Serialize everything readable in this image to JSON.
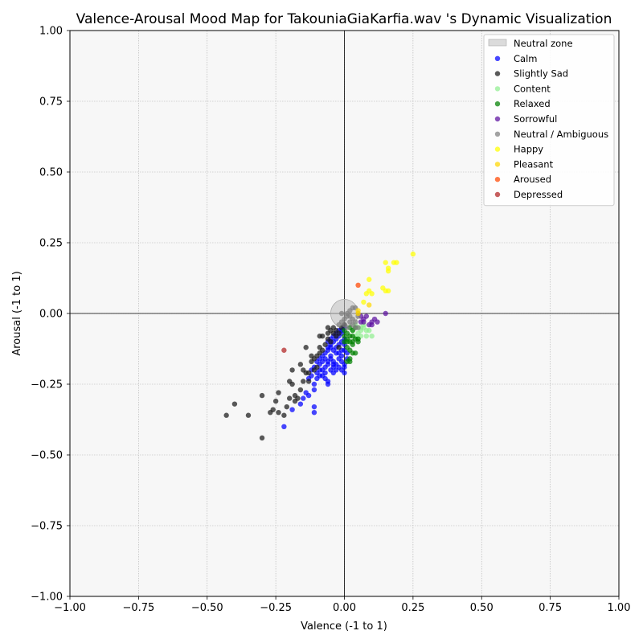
{
  "chart_data": {
    "type": "scatter",
    "title": "Valence-Arousal Mood Map for TakouniaGiaKarfia.wav 's Dynamic Visualization",
    "xlabel": "Valence (-1 to 1)",
    "ylabel": "Arousal (-1 to 1)",
    "xlim": [
      -1,
      1
    ],
    "ylim": [
      -1,
      1
    ],
    "xticks": [
      "−1.00",
      "−0.75",
      "−0.50",
      "−0.25",
      "0.00",
      "0.25",
      "0.50",
      "0.75",
      "1.00"
    ],
    "yticks": [
      "−1.00",
      "−0.75",
      "−0.50",
      "−0.25",
      "0.00",
      "0.25",
      "0.50",
      "0.75",
      "1.00"
    ],
    "xtick_values": [
      -1,
      -0.75,
      -0.5,
      -0.25,
      0,
      0.25,
      0.5,
      0.75,
      1
    ],
    "ytick_values": [
      -1,
      -0.75,
      -0.5,
      -0.25,
      0,
      0.25,
      0.5,
      0.75,
      1
    ],
    "grid": true,
    "legend_position": "top-right",
    "plot_background": "#f7f7f7",
    "neutral_zone": {
      "name": "Neutral zone",
      "center": [
        0,
        0
      ],
      "radius": 0.05,
      "color": "#bdbdbd"
    },
    "series": [
      {
        "name": "Calm",
        "color": "#0000ff",
        "points": [
          [
            -0.22,
            -0.4
          ],
          [
            -0.19,
            -0.34
          ],
          [
            -0.11,
            -0.35
          ],
          [
            -0.11,
            -0.33
          ],
          [
            -0.16,
            -0.32
          ],
          [
            -0.15,
            -0.3
          ],
          [
            -0.13,
            -0.29
          ],
          [
            -0.14,
            -0.28
          ],
          [
            -0.11,
            -0.27
          ],
          [
            -0.11,
            -0.25
          ],
          [
            -0.1,
            -0.23
          ],
          [
            -0.12,
            -0.22
          ],
          [
            -0.1,
            -0.21
          ],
          [
            -0.09,
            -0.2
          ],
          [
            -0.08,
            -0.22
          ],
          [
            -0.07,
            -0.21
          ],
          [
            -0.07,
            -0.23
          ],
          [
            -0.06,
            -0.24
          ],
          [
            -0.06,
            -0.25
          ],
          [
            -0.05,
            -0.2
          ],
          [
            -0.04,
            -0.21
          ],
          [
            -0.04,
            -0.19
          ],
          [
            -0.03,
            -0.18
          ],
          [
            -0.06,
            -0.17
          ],
          [
            -0.07,
            -0.19
          ],
          [
            -0.08,
            -0.17
          ],
          [
            -0.09,
            -0.16
          ],
          [
            -0.08,
            -0.15
          ],
          [
            -0.07,
            -0.14
          ],
          [
            -0.06,
            -0.13
          ],
          [
            -0.05,
            -0.15
          ],
          [
            -0.04,
            -0.13
          ],
          [
            -0.03,
            -0.12
          ],
          [
            -0.02,
            -0.14
          ],
          [
            -0.01,
            -0.15
          ],
          [
            -0.01,
            -0.17
          ],
          [
            0.0,
            -0.18
          ],
          [
            -0.01,
            -0.2
          ],
          [
            0.0,
            -0.19
          ],
          [
            -0.02,
            -0.19
          ],
          [
            -0.05,
            -0.11
          ],
          [
            -0.04,
            -0.1
          ],
          [
            -0.03,
            -0.09
          ],
          [
            -0.02,
            -0.08
          ],
          [
            -0.01,
            -0.07
          ],
          [
            -0.01,
            -0.06
          ],
          [
            0.0,
            -0.05
          ],
          [
            -0.02,
            -0.06
          ],
          [
            -0.03,
            -0.07
          ],
          [
            -0.01,
            -0.1
          ],
          [
            0.0,
            -0.11
          ],
          [
            -0.02,
            -0.11
          ],
          [
            0.0,
            -0.13
          ],
          [
            0.01,
            -0.14
          ],
          [
            -0.04,
            -0.08
          ],
          [
            -0.06,
            -0.1
          ],
          [
            -0.05,
            -0.12
          ],
          [
            -0.03,
            -0.14
          ],
          [
            -0.09,
            -0.18
          ],
          [
            -0.1,
            -0.17
          ],
          [
            -0.08,
            -0.2
          ],
          [
            -0.06,
            -0.18
          ],
          [
            -0.05,
            -0.16
          ],
          [
            -0.04,
            -0.17
          ],
          [
            -0.02,
            -0.16
          ],
          [
            -0.01,
            -0.13
          ],
          [
            0.0,
            -0.09
          ],
          [
            0.01,
            -0.16
          ],
          [
            0.0,
            -0.21
          ],
          [
            -0.07,
            -0.16
          ],
          [
            -0.12,
            -0.2
          ],
          [
            -0.11,
            -0.19
          ],
          [
            -0.13,
            -0.23
          ],
          [
            -0.09,
            -0.22
          ],
          [
            -0.05,
            -0.09
          ],
          [
            -0.06,
            -0.12
          ],
          [
            -0.04,
            -0.18
          ],
          [
            -0.03,
            -0.2
          ]
        ]
      },
      {
        "name": "Slightly Sad",
        "color": "#1a1a1a",
        "points": [
          [
            -0.43,
            -0.36
          ],
          [
            -0.4,
            -0.32
          ],
          [
            -0.35,
            -0.36
          ],
          [
            -0.3,
            -0.29
          ],
          [
            -0.3,
            -0.44
          ],
          [
            -0.27,
            -0.35
          ],
          [
            -0.26,
            -0.34
          ],
          [
            -0.25,
            -0.31
          ],
          [
            -0.24,
            -0.28
          ],
          [
            -0.24,
            -0.35
          ],
          [
            -0.22,
            -0.36
          ],
          [
            -0.21,
            -0.33
          ],
          [
            -0.2,
            -0.24
          ],
          [
            -0.19,
            -0.2
          ],
          [
            -0.19,
            -0.25
          ],
          [
            -0.18,
            -0.29
          ],
          [
            -0.18,
            -0.31
          ],
          [
            -0.17,
            -0.3
          ],
          [
            -0.16,
            -0.27
          ],
          [
            -0.16,
            -0.18
          ],
          [
            -0.15,
            -0.24
          ],
          [
            -0.14,
            -0.21
          ],
          [
            -0.14,
            -0.12
          ],
          [
            -0.13,
            -0.21
          ],
          [
            -0.13,
            -0.24
          ],
          [
            -0.12,
            -0.17
          ],
          [
            -0.12,
            -0.15
          ],
          [
            -0.11,
            -0.2
          ],
          [
            -0.11,
            -0.16
          ],
          [
            -0.1,
            -0.15
          ],
          [
            -0.09,
            -0.08
          ],
          [
            -0.09,
            -0.12
          ],
          [
            -0.08,
            -0.08
          ],
          [
            -0.08,
            -0.13
          ],
          [
            -0.07,
            -0.11
          ],
          [
            -0.06,
            -0.07
          ],
          [
            -0.06,
            -0.05
          ],
          [
            -0.05,
            -0.06
          ],
          [
            -0.04,
            -0.05
          ],
          [
            -0.03,
            -0.06
          ],
          [
            -0.03,
            -0.08
          ],
          [
            -0.02,
            -0.07
          ],
          [
            -0.01,
            -0.05
          ],
          [
            0.0,
            -0.04
          ],
          [
            -0.02,
            -0.12
          ],
          [
            -0.1,
            -0.19
          ],
          [
            -0.15,
            -0.2
          ],
          [
            -0.09,
            -0.14
          ],
          [
            -0.05,
            -0.1
          ],
          [
            -0.06,
            -0.09
          ],
          [
            -0.04,
            -0.07
          ],
          [
            -0.2,
            -0.3
          ]
        ]
      },
      {
        "name": "Content",
        "color": "#90ee90",
        "points": [
          [
            0.04,
            -0.08
          ],
          [
            0.05,
            -0.07
          ],
          [
            0.06,
            -0.06
          ],
          [
            0.07,
            -0.05
          ],
          [
            0.08,
            -0.06
          ],
          [
            0.06,
            -0.08
          ],
          [
            0.08,
            -0.08
          ],
          [
            0.1,
            -0.08
          ],
          [
            0.05,
            -0.05
          ],
          [
            0.04,
            -0.04
          ],
          [
            0.07,
            -0.04
          ],
          [
            0.03,
            -0.06
          ],
          [
            0.06,
            -0.05
          ],
          [
            0.05,
            -0.09
          ],
          [
            0.09,
            -0.06
          ]
        ]
      },
      {
        "name": "Relaxed",
        "color": "#008000",
        "points": [
          [
            0.0,
            -0.08
          ],
          [
            0.01,
            -0.09
          ],
          [
            0.02,
            -0.08
          ],
          [
            0.03,
            -0.08
          ],
          [
            0.02,
            -0.1
          ],
          [
            0.03,
            -0.11
          ],
          [
            0.01,
            -0.12
          ],
          [
            0.02,
            -0.05
          ],
          [
            0.03,
            -0.06
          ],
          [
            0.04,
            -0.09
          ],
          [
            0.05,
            -0.1
          ],
          [
            0.01,
            -0.17
          ],
          [
            0.02,
            -0.17
          ],
          [
            0.03,
            -0.14
          ],
          [
            0.04,
            -0.14
          ],
          [
            0.0,
            -0.1
          ],
          [
            0.01,
            -0.07
          ],
          [
            0.02,
            -0.13
          ],
          [
            0.04,
            -0.05
          ],
          [
            0.0,
            -0.06
          ],
          [
            0.05,
            -0.09
          ],
          [
            0.02,
            -0.16
          ],
          [
            0.03,
            -0.1
          ],
          [
            0.01,
            -0.1
          ]
        ]
      },
      {
        "name": "Sorrowful",
        "color": "#5b0fa0",
        "points": [
          [
            0.06,
            -0.01
          ],
          [
            0.07,
            -0.02
          ],
          [
            0.07,
            -0.03
          ],
          [
            0.09,
            -0.04
          ],
          [
            0.1,
            -0.03
          ],
          [
            0.11,
            -0.02
          ],
          [
            0.12,
            -0.03
          ],
          [
            0.15,
            0.0
          ],
          [
            0.06,
            -0.03
          ],
          [
            0.1,
            -0.04
          ],
          [
            0.08,
            -0.01
          ]
        ]
      },
      {
        "name": "Neutral / Ambiguous",
        "color": "#808080",
        "points": [
          [
            -0.01,
            -0.03
          ],
          [
            0.0,
            -0.02
          ],
          [
            0.01,
            0.0
          ],
          [
            0.01,
            -0.01
          ],
          [
            0.02,
            0.01
          ],
          [
            0.03,
            0.02
          ],
          [
            0.04,
            0.02
          ],
          [
            0.05,
            0.0
          ],
          [
            0.03,
            -0.02
          ],
          [
            0.02,
            -0.03
          ],
          [
            0.04,
            -0.03
          ],
          [
            0.05,
            -0.01
          ],
          [
            0.0,
            -0.04
          ],
          [
            -0.02,
            -0.04
          ],
          [
            0.01,
            -0.05
          ],
          [
            0.04,
            -0.05
          ],
          [
            0.05,
            -0.05
          ],
          [
            0.03,
            -0.04
          ],
          [
            0.02,
            -0.01
          ],
          [
            -0.01,
            0.0
          ]
        ]
      },
      {
        "name": "Happy",
        "color": "#ffff00",
        "points": [
          [
            0.25,
            0.21
          ],
          [
            0.19,
            0.18
          ],
          [
            0.18,
            0.18
          ],
          [
            0.15,
            0.18
          ],
          [
            0.16,
            0.16
          ],
          [
            0.16,
            0.15
          ],
          [
            0.09,
            0.12
          ],
          [
            0.14,
            0.09
          ],
          [
            0.15,
            0.08
          ],
          [
            0.16,
            0.08
          ],
          [
            0.09,
            0.08
          ],
          [
            0.08,
            0.07
          ],
          [
            0.1,
            0.07
          ],
          [
            0.07,
            0.04
          ]
        ]
      },
      {
        "name": "Pleasant",
        "color": "#ffd700",
        "points": [
          [
            0.09,
            0.03
          ],
          [
            0.05,
            0.01
          ],
          [
            0.05,
            0.0
          ]
        ]
      },
      {
        "name": "Aroused",
        "color": "#ff4500",
        "points": [
          [
            0.05,
            0.1
          ]
        ]
      },
      {
        "name": "Depressed",
        "color": "#b22222",
        "points": [
          [
            -0.22,
            -0.13
          ]
        ]
      }
    ]
  }
}
